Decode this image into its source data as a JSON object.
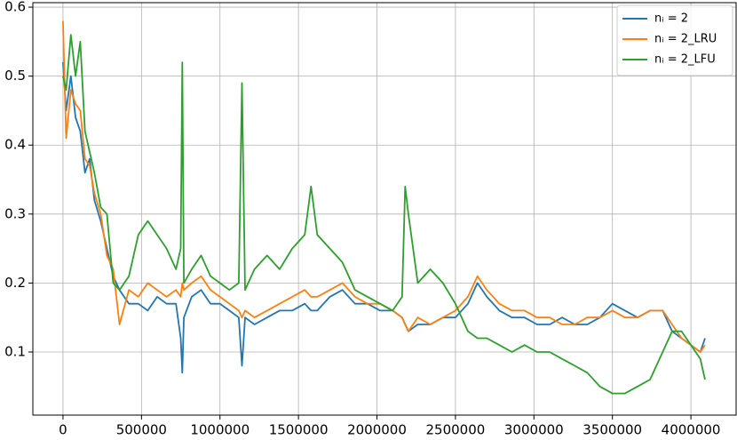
{
  "chart_data": {
    "type": "line",
    "x": [
      0,
      20000,
      50000,
      80000,
      110000,
      140000,
      170000,
      200000,
      240000,
      280000,
      320000,
      360000,
      420000,
      480000,
      540000,
      600000,
      660000,
      720000,
      750000,
      760000,
      770000,
      820000,
      880000,
      940000,
      1000000,
      1060000,
      1120000,
      1140000,
      1160000,
      1220000,
      1300000,
      1380000,
      1460000,
      1540000,
      1580000,
      1620000,
      1700000,
      1780000,
      1860000,
      1940000,
      2020000,
      2100000,
      2160000,
      2180000,
      2200000,
      2260000,
      2340000,
      2420000,
      2500000,
      2580000,
      2640000,
      2700000,
      2780000,
      2860000,
      2940000,
      3020000,
      3100000,
      3180000,
      3260000,
      3340000,
      3420000,
      3500000,
      3580000,
      3660000,
      3740000,
      3820000,
      3880000,
      3940000,
      4000000,
      4060000,
      4090000
    ],
    "series": [
      {
        "name": "nᵢ = 2",
        "color": "#1f77b4",
        "values": [
          0.52,
          0.45,
          0.5,
          0.44,
          0.42,
          0.36,
          0.38,
          0.32,
          0.29,
          0.25,
          0.21,
          0.19,
          0.17,
          0.17,
          0.16,
          0.18,
          0.17,
          0.17,
          0.12,
          0.07,
          0.15,
          0.18,
          0.19,
          0.17,
          0.17,
          0.16,
          0.15,
          0.08,
          0.15,
          0.14,
          0.15,
          0.16,
          0.16,
          0.17,
          0.16,
          0.16,
          0.18,
          0.19,
          0.17,
          0.17,
          0.16,
          0.16,
          0.15,
          0.14,
          0.13,
          0.14,
          0.14,
          0.15,
          0.15,
          0.17,
          0.2,
          0.18,
          0.16,
          0.15,
          0.15,
          0.14,
          0.14,
          0.15,
          0.14,
          0.14,
          0.15,
          0.17,
          0.16,
          0.15,
          0.16,
          0.16,
          0.13,
          0.12,
          0.11,
          0.1,
          0.12
        ]
      },
      {
        "name": "nᵢ = 2_LRU",
        "color": "#ff7f0e",
        "values": [
          0.58,
          0.41,
          0.48,
          0.46,
          0.45,
          0.38,
          0.37,
          0.33,
          0.3,
          0.24,
          0.22,
          0.14,
          0.19,
          0.18,
          0.2,
          0.19,
          0.18,
          0.19,
          0.18,
          0.2,
          0.19,
          0.2,
          0.21,
          0.19,
          0.18,
          0.17,
          0.16,
          0.15,
          0.16,
          0.15,
          0.16,
          0.17,
          0.18,
          0.19,
          0.18,
          0.18,
          0.19,
          0.2,
          0.18,
          0.17,
          0.17,
          0.16,
          0.15,
          0.14,
          0.13,
          0.15,
          0.14,
          0.15,
          0.16,
          0.18,
          0.21,
          0.19,
          0.17,
          0.16,
          0.16,
          0.15,
          0.15,
          0.14,
          0.14,
          0.15,
          0.15,
          0.16,
          0.15,
          0.15,
          0.16,
          0.16,
          0.14,
          0.12,
          0.11,
          0.1,
          0.11
        ]
      },
      {
        "name": "nᵢ = 2_LFU",
        "color": "#2ca02c",
        "values": [
          0.5,
          0.48,
          0.56,
          0.5,
          0.55,
          0.42,
          0.39,
          0.36,
          0.31,
          0.3,
          0.2,
          0.19,
          0.21,
          0.27,
          0.29,
          0.27,
          0.25,
          0.22,
          0.25,
          0.52,
          0.2,
          0.22,
          0.24,
          0.21,
          0.2,
          0.19,
          0.2,
          0.49,
          0.19,
          0.22,
          0.24,
          0.22,
          0.25,
          0.27,
          0.34,
          0.27,
          0.25,
          0.23,
          0.19,
          0.18,
          0.17,
          0.16,
          0.18,
          0.34,
          0.3,
          0.2,
          0.22,
          0.2,
          0.17,
          0.13,
          0.12,
          0.12,
          0.11,
          0.1,
          0.11,
          0.1,
          0.1,
          0.09,
          0.08,
          0.07,
          0.05,
          0.04,
          0.04,
          0.05,
          0.06,
          0.1,
          0.13,
          0.13,
          0.11,
          0.09,
          0.06
        ]
      }
    ],
    "xlim": [
      -192000,
      4288000
    ],
    "ylim": [
      0.0085,
      0.6065
    ],
    "xticks": [
      0,
      500000,
      1000000,
      1500000,
      2000000,
      2500000,
      3000000,
      3500000,
      4000000
    ],
    "yticks": [
      0.1,
      0.2,
      0.3,
      0.4,
      0.5,
      0.6
    ],
    "grid": true,
    "legend": "upper right"
  }
}
